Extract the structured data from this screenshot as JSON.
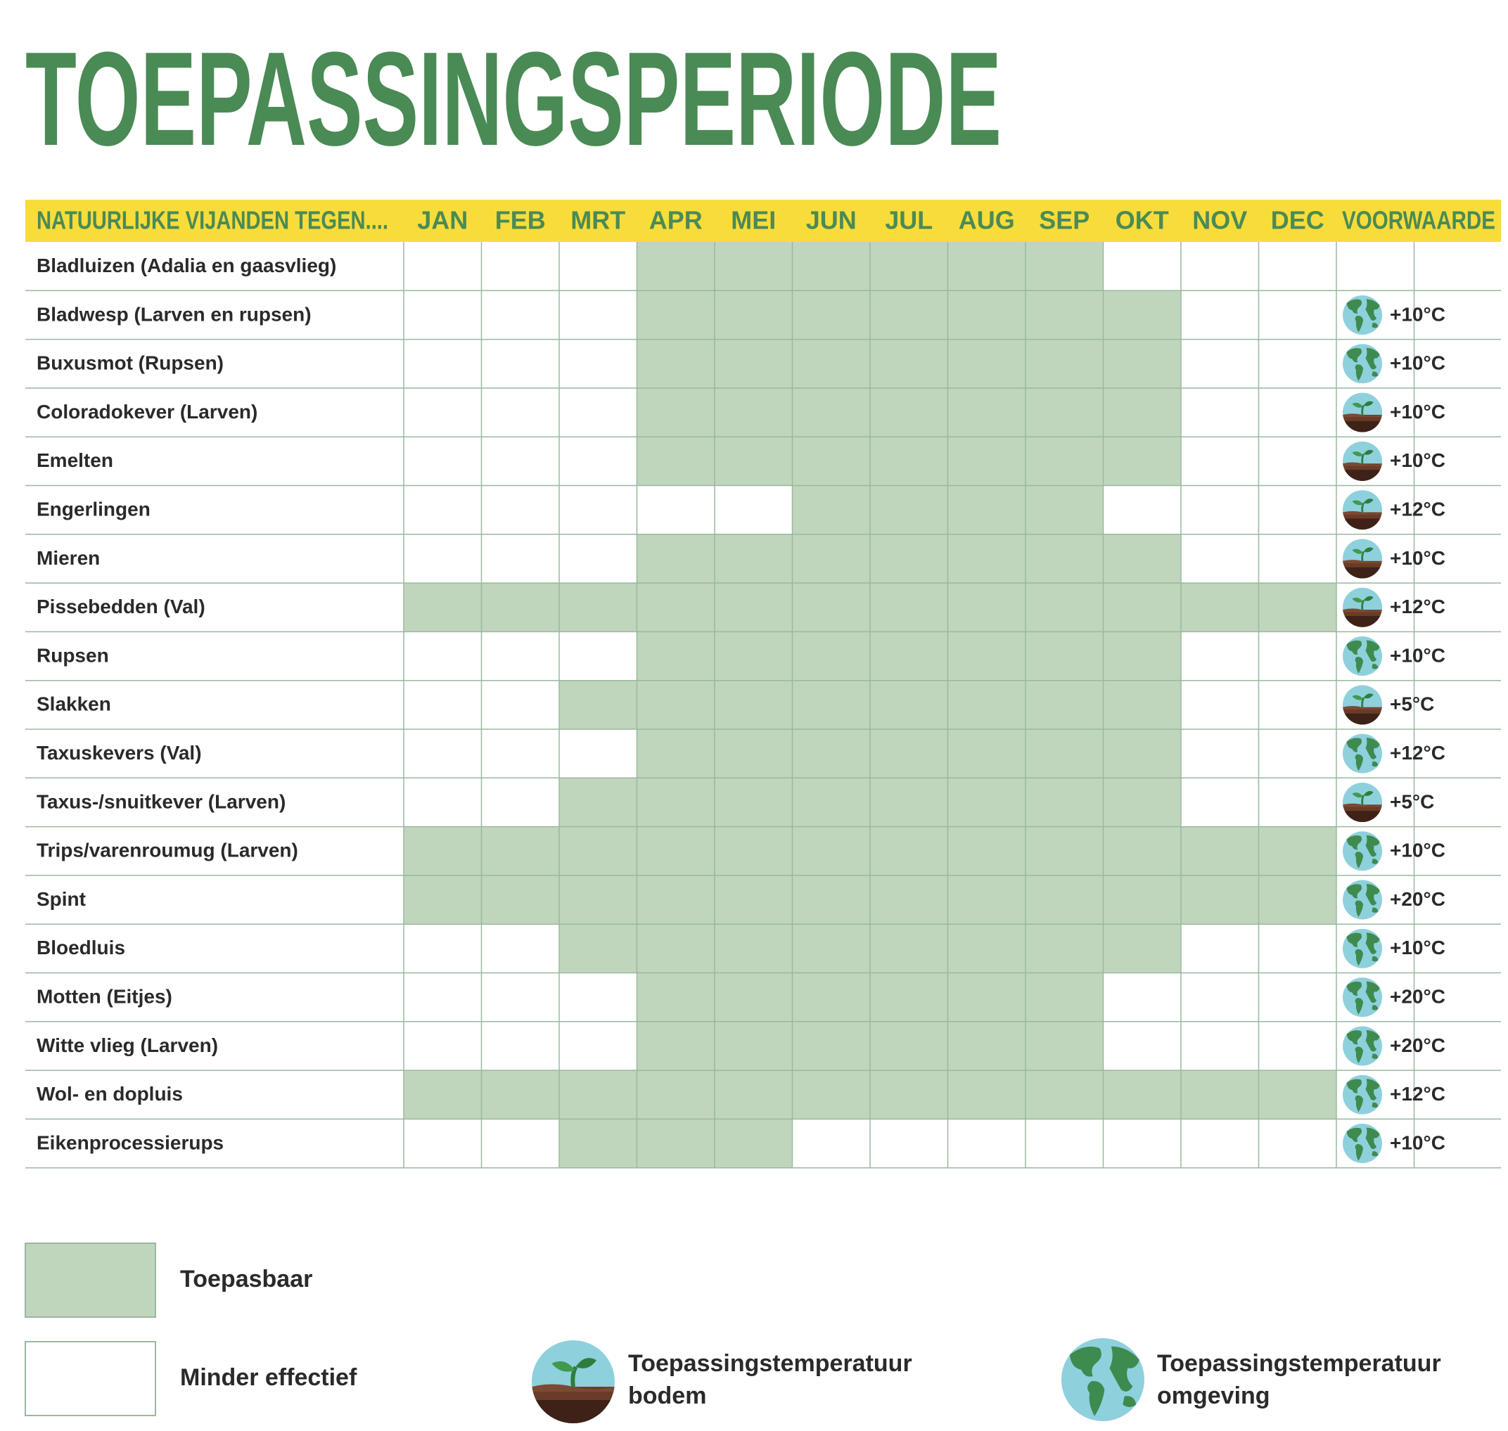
{
  "header": {
    "title": "TOEPASSINGSPERIODE"
  },
  "table": {
    "columns": [
      "NATUURLIJKE VIJANDEN TEGEN....",
      "JAN",
      "FEB",
      "MRT",
      "APR",
      "MEI",
      "JUN",
      "JUL",
      "AUG",
      "SEP",
      "OKT",
      "NOV",
      "DEC",
      "VOORWAARDE"
    ],
    "rows": [
      {
        "name": "Bladluizen (Adalia en gaasvlieg)",
        "months": [
          0,
          0,
          0,
          1,
          1,
          1,
          1,
          1,
          1,
          0,
          0,
          0
        ],
        "condition": null
      },
      {
        "name": "Bladwesp (Larven en rupsen)",
        "months": [
          0,
          0,
          0,
          1,
          1,
          1,
          1,
          1,
          1,
          1,
          0,
          0
        ],
        "condition": {
          "icon": "omgeving",
          "temperature": "+10°C"
        }
      },
      {
        "name": "Buxusmot (Rupsen)",
        "months": [
          0,
          0,
          0,
          1,
          1,
          1,
          1,
          1,
          1,
          1,
          0,
          0
        ],
        "condition": {
          "icon": "omgeving",
          "temperature": "+10°C"
        }
      },
      {
        "name": "Coloradokever (Larven)",
        "months": [
          0,
          0,
          0,
          1,
          1,
          1,
          1,
          1,
          1,
          1,
          0,
          0
        ],
        "condition": {
          "icon": "bodem",
          "temperature": "+10°C"
        }
      },
      {
        "name": "Emelten",
        "months": [
          0,
          0,
          0,
          1,
          1,
          1,
          1,
          1,
          1,
          1,
          0,
          0
        ],
        "condition": {
          "icon": "bodem",
          "temperature": "+10°C"
        }
      },
      {
        "name": "Engerlingen",
        "months": [
          0,
          0,
          0,
          0,
          0,
          1,
          1,
          1,
          1,
          0,
          0,
          0
        ],
        "condition": {
          "icon": "bodem",
          "temperature": "+12°C"
        }
      },
      {
        "name": "Mieren",
        "months": [
          0,
          0,
          0,
          1,
          1,
          1,
          1,
          1,
          1,
          1,
          0,
          0
        ],
        "condition": {
          "icon": "bodem",
          "temperature": "+10°C"
        }
      },
      {
        "name": "Pissebedden (Val)",
        "months": [
          1,
          1,
          1,
          1,
          1,
          1,
          1,
          1,
          1,
          1,
          1,
          1
        ],
        "condition": {
          "icon": "bodem",
          "temperature": "+12°C"
        }
      },
      {
        "name": "Rupsen",
        "months": [
          0,
          0,
          0,
          1,
          1,
          1,
          1,
          1,
          1,
          1,
          0,
          0
        ],
        "condition": {
          "icon": "omgeving",
          "temperature": "+10°C"
        }
      },
      {
        "name": "Slakken",
        "months": [
          0,
          0,
          1,
          1,
          1,
          1,
          1,
          1,
          1,
          1,
          0,
          0
        ],
        "condition": {
          "icon": "bodem",
          "temperature": "+5°C"
        }
      },
      {
        "name": "Taxuskevers (Val)",
        "months": [
          0,
          0,
          0,
          1,
          1,
          1,
          1,
          1,
          1,
          1,
          0,
          0
        ],
        "condition": {
          "icon": "omgeving",
          "temperature": "+12°C"
        }
      },
      {
        "name": "Taxus-/snuitkever (Larven)",
        "months": [
          0,
          0,
          1,
          1,
          1,
          1,
          1,
          1,
          1,
          1,
          0,
          0
        ],
        "condition": {
          "icon": "bodem",
          "temperature": "+5°C"
        }
      },
      {
        "name": "Trips/varenroumug  (Larven)",
        "months": [
          1,
          1,
          1,
          1,
          1,
          1,
          1,
          1,
          1,
          1,
          1,
          1
        ],
        "condition": {
          "icon": "omgeving",
          "temperature": "+10°C"
        }
      },
      {
        "name": "Spint",
        "months": [
          1,
          1,
          1,
          1,
          1,
          1,
          1,
          1,
          1,
          1,
          1,
          1
        ],
        "condition": {
          "icon": "omgeving",
          "temperature": "+20°C"
        }
      },
      {
        "name": "Bloedluis",
        "months": [
          0,
          0,
          1,
          1,
          1,
          1,
          1,
          1,
          1,
          1,
          0,
          0
        ],
        "condition": {
          "icon": "omgeving",
          "temperature": "+10°C"
        }
      },
      {
        "name": "Motten (Eitjes)",
        "months": [
          0,
          0,
          0,
          1,
          1,
          1,
          1,
          1,
          1,
          0,
          0,
          0
        ],
        "condition": {
          "icon": "omgeving",
          "temperature": "+20°C"
        }
      },
      {
        "name": "Witte vlieg (Larven)",
        "months": [
          0,
          0,
          0,
          1,
          1,
          1,
          1,
          1,
          1,
          0,
          0,
          0
        ],
        "condition": {
          "icon": "omgeving",
          "temperature": "+20°C"
        }
      },
      {
        "name": "Wol- en dopluis",
        "months": [
          1,
          1,
          1,
          1,
          1,
          1,
          1,
          1,
          1,
          1,
          1,
          1
        ],
        "condition": {
          "icon": "omgeving",
          "temperature": "+12°C"
        }
      },
      {
        "name": "Eikenprocessierups",
        "months": [
          0,
          0,
          1,
          1,
          1,
          0,
          0,
          0,
          0,
          0,
          0,
          0
        ],
        "condition": {
          "icon": "omgeving",
          "temperature": "+10°C"
        }
      }
    ]
  },
  "legend": {
    "applicable": "Toepasbaar",
    "less_effective": "Minder effectief",
    "bodem": [
      "Toepassingstemperatuur",
      "bodem"
    ],
    "omgeving": [
      "Toepassingstemperatuur",
      "omgeving"
    ]
  }
}
